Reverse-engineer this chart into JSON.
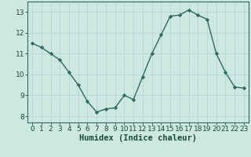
{
  "x": [
    0,
    1,
    2,
    3,
    4,
    5,
    6,
    7,
    8,
    9,
    10,
    11,
    12,
    13,
    14,
    15,
    16,
    17,
    18,
    19,
    20,
    21,
    22,
    23
  ],
  "y": [
    11.5,
    11.3,
    11.0,
    10.7,
    10.1,
    9.5,
    8.7,
    8.2,
    8.35,
    8.4,
    9.0,
    8.8,
    9.9,
    11.0,
    11.9,
    12.8,
    12.85,
    13.1,
    12.85,
    12.65,
    11.0,
    10.1,
    9.4,
    9.35
  ],
  "line_color": "#2e6b5e",
  "marker": "D",
  "marker_size": 2.2,
  "line_width": 1.0,
  "bg_color": "#cce8e0",
  "grid_color": "#b0d4cc",
  "xlabel": "Humidex (Indice chaleur)",
  "xlabel_fontsize": 7.5,
  "xlim": [
    -0.5,
    23.5
  ],
  "ylim": [
    7.7,
    13.5
  ],
  "yticks": [
    8,
    9,
    10,
    11,
    12,
    13
  ],
  "xticks": [
    0,
    1,
    2,
    3,
    4,
    5,
    6,
    7,
    8,
    9,
    10,
    11,
    12,
    13,
    14,
    15,
    16,
    17,
    18,
    19,
    20,
    21,
    22,
    23
  ],
  "tick_fontsize": 6.5,
  "tick_color": "#1a4a3a",
  "spine_color": "#2e6b5e"
}
